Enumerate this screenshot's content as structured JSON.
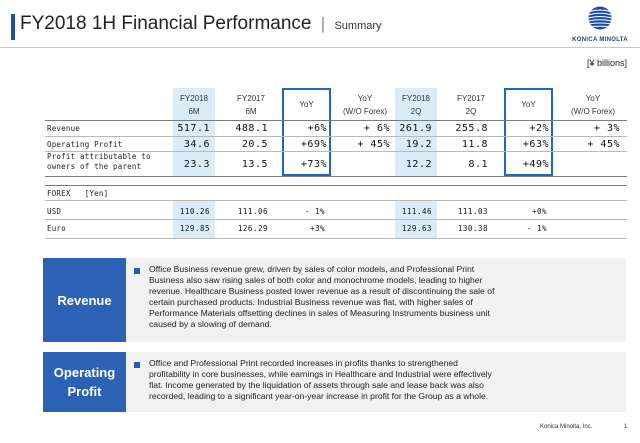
{
  "header": {
    "title": "FY2018 1H Financial Performance",
    "separator": "|",
    "subtitle": "Summary",
    "logo_text": "KONICA MINOLTA",
    "unit": "[¥ billions]"
  },
  "table": {
    "columns": [
      {
        "line1": "FY2018",
        "line2": "6M"
      },
      {
        "line1": "FY2017",
        "line2": "6M"
      },
      {
        "line1": "YoY",
        "line2": ""
      },
      {
        "line1": "YoY",
        "line2": "(W/O Forex)"
      },
      {
        "line1": "FY2018",
        "line2": "2Q"
      },
      {
        "line1": "FY2017",
        "line2": "2Q"
      },
      {
        "line1": "YoY",
        "line2": ""
      },
      {
        "line1": "YoY",
        "line2": "(W/O Forex)"
      }
    ],
    "rows": [
      {
        "label1": "Revenue",
        "label2": "",
        "values": [
          "517.1",
          "488.1",
          "+6%",
          "+ 6%",
          "261.9",
          "255.8",
          "+2%",
          "+ 3%"
        ]
      },
      {
        "label1": "Operating Profit",
        "label2": "",
        "values": [
          "34.6",
          "20.5",
          "+69%",
          "+ 45%",
          "19.2",
          "11.8",
          "+63%",
          "+ 45%"
        ]
      },
      {
        "label1": "Profit attributable to",
        "label2": "owners of the parent",
        "values": [
          "23.3",
          "13.5",
          "+73%",
          "",
          "12.2",
          "8.1",
          "+49%",
          ""
        ]
      }
    ],
    "forex_header": "FOREX   [Yen]",
    "forex_rows": [
      {
        "label": "USD",
        "values": [
          "110.26",
          "111.06",
          "- 1%",
          "",
          "111.46",
          "111.03",
          "+0%",
          ""
        ]
      },
      {
        "label": "Euro",
        "values": [
          "129.85",
          "126.29",
          "+3%",
          "",
          "129.63",
          "130.38",
          "- 1%",
          ""
        ]
      }
    ]
  },
  "panels": {
    "revenue": {
      "label": "Revenue",
      "lines": [
        "Office Business revenue grew, driven by sales of color models, and Professional Print",
        "Business also saw rising sales of both color and monochrome models, leading to higher",
        "revenue. Healthcare Business posted lower revenue as a result of discontinuing the sale of",
        "certain purchased products. Industrial Business revenue was flat, with higher sales of",
        "Performance Materials offsetting declines in sales of Measuring Instruments business unit",
        "caused by a slowing of demand."
      ]
    },
    "operating_profit": {
      "label_line1": "Operating",
      "label_line2": "Profit",
      "lines": [
        "Office and Professional Print recorded increases in profits thanks to strengthened",
        "profitability in core businesses, while earnings in Healthcare and Industrial were effectively",
        "flat. Income generated by the liquidation of assets through sale and lease back was also",
        "recorded, leading to a significant year-on-year increase in profit for the Group as a whole."
      ]
    }
  },
  "footer": {
    "company": "Konica Minolta, Inc.",
    "page": "1"
  },
  "colors": {
    "accent_blue": "#2b62b4",
    "band_blue": "#d9ecf7",
    "yoy_box": "#1f66c8",
    "panel_bg": "#f1f1f1"
  }
}
